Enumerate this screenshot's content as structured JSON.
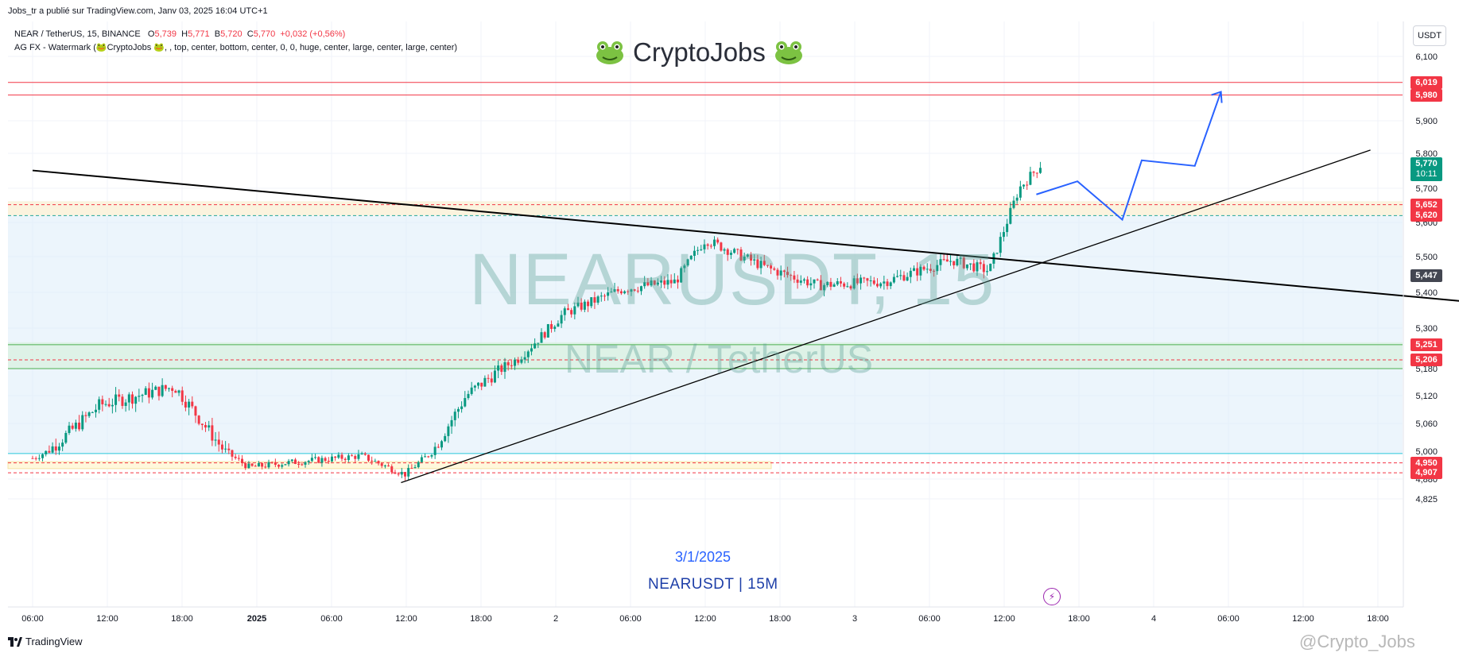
{
  "header": {
    "published_by": "Jobs_tr a publié sur TradingView.com, Janv 03, 2025 16:04 UTC+1"
  },
  "legend": {
    "symbol": "NEAR / TetherUS, 15, BINANCE",
    "o_label": "O",
    "o_value": "5,739",
    "h_label": "H",
    "h_value": "5,771",
    "b_label": "B",
    "b_value": "5,720",
    "c_label": "C",
    "c_value": "5,770",
    "change": "+0,032 (+0,56%)",
    "indicator": "AG FX - Watermark (🐸CryptoJobs 🐸, , top, center, bottom, center, 0, 0, huge, center, large, center, large, center)"
  },
  "watermark": {
    "brand": "CryptoJobs",
    "symbol_big": "NEARUSDT, 15",
    "pair_big": "NEAR / TetherUS"
  },
  "annotations": {
    "date": "3/1/2025",
    "symbol_tf": "NEARUSDT | 15M"
  },
  "price_axis": {
    "currency": "USDT",
    "tags": [
      {
        "label": "6,019",
        "color": "#f23645"
      },
      {
        "label": "5,980",
        "color": "#f23645"
      },
      {
        "label": "5,770",
        "sub": "10:11",
        "color": "#089981"
      },
      {
        "label": "5,652",
        "color": "#f23645"
      },
      {
        "label": "5,620",
        "color": "#f23645"
      },
      {
        "label": "5,447",
        "color": "#434651"
      },
      {
        "label": "5,251",
        "color": "#f23645"
      },
      {
        "label": "5,206",
        "color": "#f23645"
      },
      {
        "label": "4,950",
        "color": "#f23645"
      },
      {
        "label": "4,907",
        "color": "#f23645"
      }
    ]
  },
  "footer": {
    "logo_text": "TradingView",
    "credit": "@Crypto_Jobs"
  },
  "colors": {
    "up": "#089981",
    "down": "#f23645",
    "projection": "#2962ff",
    "zone": "#dcedfa"
  },
  "chart_data": {
    "type": "candlestick",
    "interval": "15",
    "y_ticks": [
      6.1,
      5.9,
      5.8,
      5.7,
      5.6,
      5.5,
      5.4,
      5.3,
      5.18,
      5.12,
      5.06,
      5.0,
      4.88,
      4.825
    ],
    "y_tick_labels": [
      "6,100",
      "5,900",
      "5,800",
      "5,700",
      "5,600",
      "5,500",
      "5,400",
      "5,300",
      "5,180",
      "5,120",
      "5,060",
      "5,000",
      "4,880",
      "4,825"
    ],
    "x_tick_labels": [
      "06:00",
      "12:00",
      "18:00",
      "2025",
      "06:00",
      "12:00",
      "18:00",
      "2",
      "06:00",
      "12:00",
      "18:00",
      "3",
      "06:00",
      "12:00",
      "18:00",
      "4",
      "06:00",
      "12:00",
      "18:00"
    ],
    "levels": [
      6.019,
      5.98,
      5.652,
      5.62,
      5.251,
      5.206,
      4.95,
      4.907
    ],
    "current_price": 5.77,
    "trend_down_line": {
      "start": [
        0,
        5.751
      ],
      "end": [
        19.2,
        5.374
      ]
    },
    "trend_up_line": {
      "start": [
        4.93,
        4.87
      ],
      "end": [
        17.9,
        5.81
      ]
    },
    "projection_path": [
      [
        13.43,
        5.682
      ],
      [
        13.98,
        5.72
      ],
      [
        14.58,
        5.608
      ],
      [
        14.84,
        5.78
      ],
      [
        15.55,
        5.764
      ],
      [
        15.9,
        5.99
      ]
    ],
    "key_points": [
      {
        "x": 0.0,
        "close": 4.97
      },
      {
        "x": 0.9,
        "close": 5.1
      },
      {
        "x": 1.9,
        "close": 5.14
      },
      {
        "x": 2.9,
        "close": 4.93
      },
      {
        "x": 3.4,
        "close": 4.95
      },
      {
        "x": 4.4,
        "close": 4.98
      },
      {
        "x": 4.98,
        "close": 4.9
      },
      {
        "x": 5.8,
        "close": 5.12
      },
      {
        "x": 6.5,
        "close": 5.21
      },
      {
        "x": 7.1,
        "close": 5.34
      },
      {
        "x": 7.9,
        "close": 5.41
      },
      {
        "x": 8.6,
        "close": 5.43
      },
      {
        "x": 9.0,
        "close": 5.55
      },
      {
        "x": 9.8,
        "close": 5.47
      },
      {
        "x": 10.5,
        "close": 5.42
      },
      {
        "x": 11.4,
        "close": 5.43
      },
      {
        "x": 12.3,
        "close": 5.49
      },
      {
        "x": 12.8,
        "close": 5.46
      },
      {
        "x": 13.2,
        "close": 5.7
      },
      {
        "x": 13.5,
        "close": 5.77
      }
    ]
  }
}
